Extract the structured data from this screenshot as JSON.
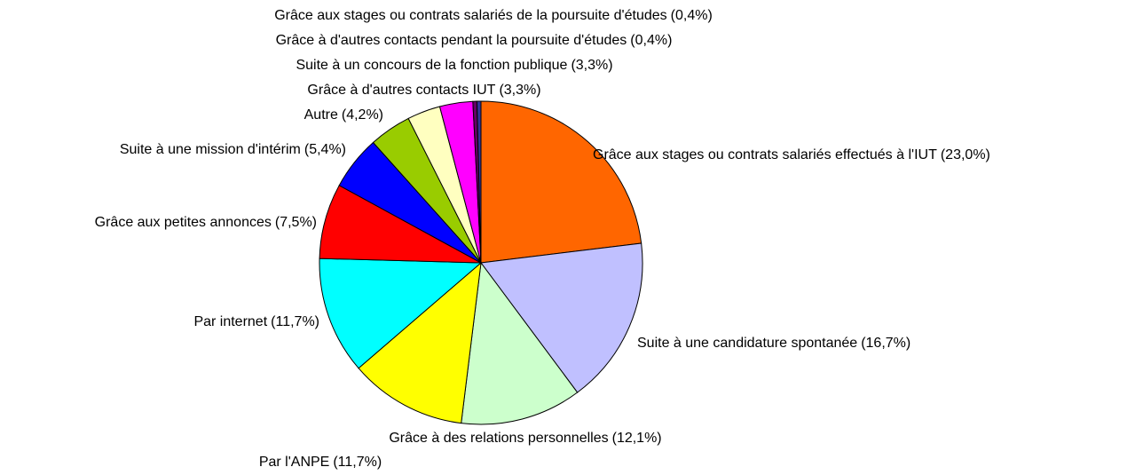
{
  "chart_data": {
    "type": "pie",
    "categories": [
      "Grâce aux stages ou contrats salariés effectués à l'IUT",
      "Suite à une candidature spontanée",
      "Grâce à des relations personnelles",
      "Par l'ANPE",
      "Par internet",
      "Grâce aux petites annonces",
      "Suite à une mission d'intérim",
      "Autre",
      "Grâce à d'autres contacts IUT",
      "Suite à un concours de la fonction publique",
      "Grâce à d'autres contacts pendant la poursuite d'études",
      "Grâce aux stages ou contrats salariés de la poursuite d'études"
    ],
    "values": [
      23.0,
      16.7,
      12.1,
      11.7,
      11.7,
      7.5,
      5.4,
      4.2,
      3.3,
      3.3,
      0.4,
      0.4
    ],
    "value_labels": [
      "(23,0%)",
      "(16,7%)",
      "(12,1%)",
      "(11,7%)",
      "(11,7%)",
      "(7,5%)",
      "(5,4%)",
      "(4,2%)",
      "(3,3%)",
      "(3,3%)",
      "(0,4%)",
      "(0,4%)"
    ],
    "colors": [
      "#ff6600",
      "#c0c0ff",
      "#ccffcc",
      "#ffff00",
      "#00ffff",
      "#ff0000",
      "#0000ff",
      "#99cc00",
      "#ffffc0",
      "#ff00ff",
      "#660066",
      "#333399"
    ]
  }
}
